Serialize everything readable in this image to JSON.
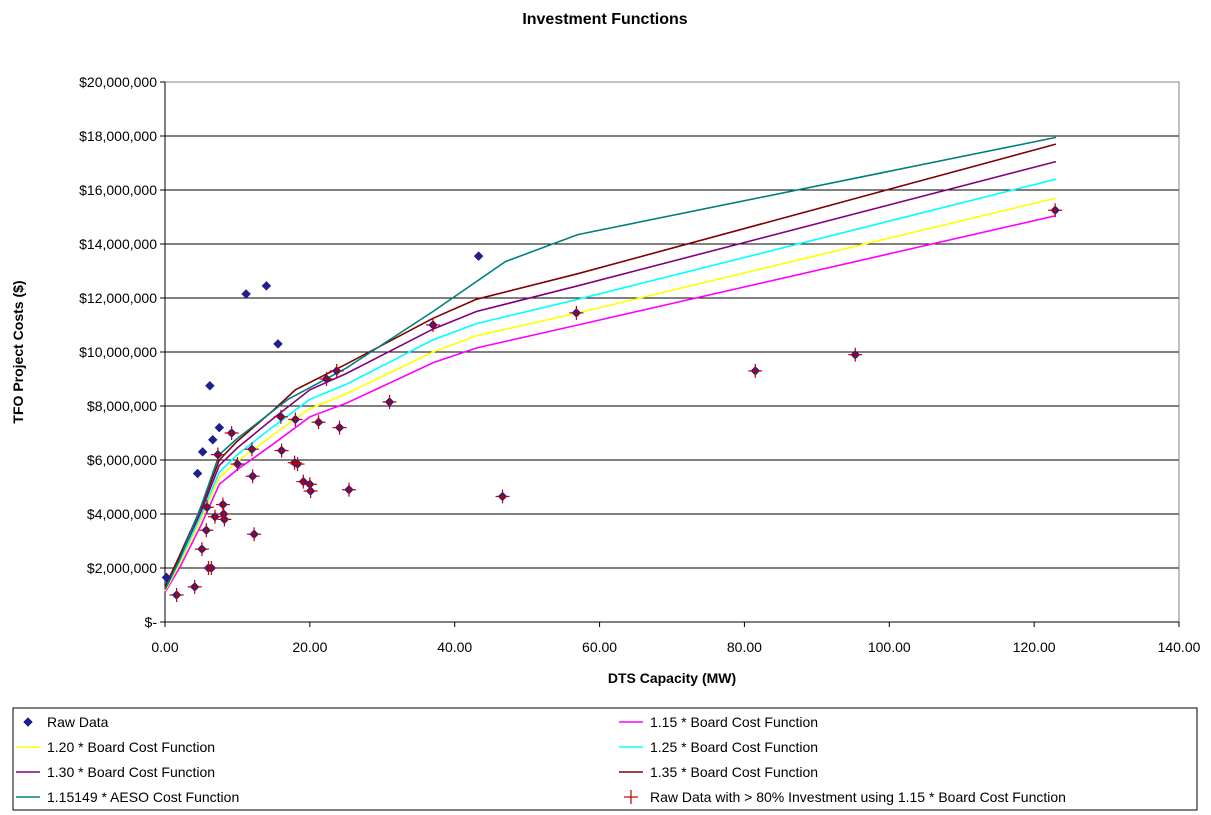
{
  "chart_data": {
    "type": "scatter",
    "title": "Investment Functions",
    "xlabel": "DTS Capacity (MW)",
    "ylabel": "TFO Project Costs ($)",
    "xlim": [
      0,
      140
    ],
    "ylim": [
      0,
      20000000
    ],
    "x_ticks": [
      0,
      20,
      40,
      60,
      80,
      100,
      120,
      140
    ],
    "x_tick_labels": [
      "0.00",
      "20.00",
      "40.00",
      "60.00",
      "80.00",
      "100.00",
      "120.00",
      "140.00"
    ],
    "y_ticks": [
      0,
      2000000,
      4000000,
      6000000,
      8000000,
      10000000,
      12000000,
      14000000,
      16000000,
      18000000,
      20000000
    ],
    "y_tick_labels": [
      "$-",
      "$2,000,000",
      "$4,000,000",
      "$6,000,000",
      "$8,000,000",
      "$10,000,000",
      "$12,000,000",
      "$14,000,000",
      "$16,000,000",
      "$18,000,000",
      "$20,000,000"
    ],
    "grid": "horizontal",
    "legend_position": "bottom",
    "series": [
      {
        "name": "Raw Data",
        "kind": "marker-diamond",
        "color": "#1F1F8F",
        "points": [
          [
            0.2,
            1650000
          ],
          [
            1.6,
            1000000
          ],
          [
            4.1,
            1300000
          ],
          [
            4.5,
            5500000
          ],
          [
            5.1,
            2700000
          ],
          [
            5.2,
            6300000
          ],
          [
            5.7,
            3400000
          ],
          [
            5.8,
            4250000
          ],
          [
            6.0,
            2000000
          ],
          [
            6.2,
            8750000
          ],
          [
            6.4,
            2000000
          ],
          [
            6.6,
            6750000
          ],
          [
            6.9,
            3900000
          ],
          [
            7.3,
            6200000
          ],
          [
            7.5,
            7200000
          ],
          [
            8.0,
            4350000
          ],
          [
            8.1,
            4000000
          ],
          [
            8.2,
            3800000
          ],
          [
            9.2,
            7000000
          ],
          [
            10.0,
            5850000
          ],
          [
            11.2,
            12150000
          ],
          [
            12.0,
            6400000
          ],
          [
            12.1,
            5400000
          ],
          [
            12.3,
            3250000
          ],
          [
            14.0,
            12450000
          ],
          [
            15.6,
            10300000
          ],
          [
            16.0,
            7600000
          ],
          [
            16.1,
            6350000
          ],
          [
            17.9,
            5900000
          ],
          [
            18.0,
            7500000
          ],
          [
            18.3,
            5850000
          ],
          [
            19.1,
            5200000
          ],
          [
            20.0,
            5100000
          ],
          [
            20.1,
            4850000
          ],
          [
            21.2,
            7400000
          ],
          [
            22.3,
            9000000
          ],
          [
            23.7,
            9300000
          ],
          [
            24.1,
            7200000
          ],
          [
            25.4,
            4900000
          ],
          [
            31.0,
            8150000
          ],
          [
            37.0,
            11000000
          ],
          [
            43.3,
            13550000
          ],
          [
            46.6,
            4650000
          ],
          [
            56.8,
            11450000
          ],
          [
            81.5,
            9300000
          ],
          [
            95.3,
            9900000
          ],
          [
            122.9,
            15250000
          ]
        ]
      },
      {
        "name": "1.15 * Board Cost Function",
        "kind": "line",
        "color": "#FF00FF",
        "points": [
          [
            0,
            1100000
          ],
          [
            2,
            2000000
          ],
          [
            5,
            3600000
          ],
          [
            7.5,
            5100000
          ],
          [
            10,
            5650000
          ],
          [
            15,
            6600000
          ],
          [
            20,
            7600000
          ],
          [
            25,
            8100000
          ],
          [
            37,
            9600000
          ],
          [
            43,
            10150000
          ],
          [
            57,
            11000000
          ],
          [
            123,
            15050000
          ]
        ]
      },
      {
        "name": "1.20 * Board Cost Function",
        "kind": "line",
        "color": "#FFFF00",
        "points": [
          [
            0,
            1150000
          ],
          [
            2,
            2150000
          ],
          [
            5,
            3800000
          ],
          [
            7.5,
            5350000
          ],
          [
            10,
            5950000
          ],
          [
            15,
            6950000
          ],
          [
            20,
            7900000
          ],
          [
            25,
            8450000
          ],
          [
            37,
            10000000
          ],
          [
            43,
            10600000
          ],
          [
            57,
            11450000
          ],
          [
            123,
            15700000
          ]
        ]
      },
      {
        "name": "1.25 * Board Cost Function",
        "kind": "line",
        "color": "#00FFFF",
        "points": [
          [
            0,
            1200000
          ],
          [
            2,
            2250000
          ],
          [
            5,
            3950000
          ],
          [
            7.5,
            5550000
          ],
          [
            10,
            6200000
          ],
          [
            15,
            7250000
          ],
          [
            20,
            8250000
          ],
          [
            25,
            8800000
          ],
          [
            37,
            10450000
          ],
          [
            43,
            11050000
          ],
          [
            57,
            11950000
          ],
          [
            123,
            16400000
          ]
        ]
      },
      {
        "name": "1.30 * Board Cost Function",
        "kind": "line",
        "color": "#800080",
        "points": [
          [
            0,
            1250000
          ],
          [
            2,
            2350000
          ],
          [
            5,
            4100000
          ],
          [
            7.5,
            5800000
          ],
          [
            10,
            6450000
          ],
          [
            15,
            7550000
          ],
          [
            20,
            8600000
          ],
          [
            25,
            9200000
          ],
          [
            37,
            10850000
          ],
          [
            43,
            11500000
          ],
          [
            57,
            12450000
          ],
          [
            123,
            17050000
          ]
        ]
      },
      {
        "name": "1.35 * Board Cost Function",
        "kind": "line",
        "color": "#800000",
        "points": [
          [
            0,
            1300000
          ],
          [
            2,
            2450000
          ],
          [
            5,
            4250000
          ],
          [
            7.5,
            6000000
          ],
          [
            10,
            6700000
          ],
          [
            15,
            7850000
          ],
          [
            18,
            8600000
          ],
          [
            25,
            9550000
          ],
          [
            37,
            11250000
          ],
          [
            43,
            11950000
          ],
          [
            57,
            12900000
          ],
          [
            123,
            17700000
          ]
        ]
      },
      {
        "name": "1.15149 * AESO Cost Function",
        "kind": "line",
        "color": "#008080",
        "points": [
          [
            0,
            1200000
          ],
          [
            2,
            2300000
          ],
          [
            5,
            4300000
          ],
          [
            7.5,
            6200000
          ],
          [
            10,
            6800000
          ],
          [
            17,
            8250000
          ],
          [
            25,
            9400000
          ],
          [
            37,
            11500000
          ],
          [
            47,
            13350000
          ],
          [
            57,
            14350000
          ],
          [
            123,
            17950000
          ]
        ]
      },
      {
        "name": "Raw Data with > 80% Investment using 1.15 * Board Cost Function",
        "kind": "marker-plus",
        "color": "#C00000",
        "points": [
          [
            1.6,
            1000000
          ],
          [
            4.1,
            1300000
          ],
          [
            5.1,
            2700000
          ],
          [
            5.7,
            3400000
          ],
          [
            5.8,
            4250000
          ],
          [
            6.0,
            2000000
          ],
          [
            6.4,
            2000000
          ],
          [
            6.9,
            3900000
          ],
          [
            7.3,
            6200000
          ],
          [
            8.0,
            4350000
          ],
          [
            8.1,
            4000000
          ],
          [
            8.2,
            3800000
          ],
          [
            9.2,
            7000000
          ],
          [
            10.0,
            5850000
          ],
          [
            12.0,
            6400000
          ],
          [
            12.1,
            5400000
          ],
          [
            12.3,
            3250000
          ],
          [
            16.0,
            7600000
          ],
          [
            16.1,
            6350000
          ],
          [
            17.9,
            5900000
          ],
          [
            18.0,
            7500000
          ],
          [
            18.3,
            5850000
          ],
          [
            19.1,
            5200000
          ],
          [
            20.0,
            5100000
          ],
          [
            20.1,
            4850000
          ],
          [
            21.2,
            7400000
          ],
          [
            22.3,
            9000000
          ],
          [
            23.7,
            9300000
          ],
          [
            24.1,
            7200000
          ],
          [
            25.4,
            4900000
          ],
          [
            31.0,
            8150000
          ],
          [
            37.0,
            11000000
          ],
          [
            46.6,
            4650000
          ],
          [
            56.8,
            11450000
          ],
          [
            81.5,
            9300000
          ],
          [
            95.3,
            9900000
          ],
          [
            122.9,
            15250000
          ]
        ]
      }
    ]
  }
}
